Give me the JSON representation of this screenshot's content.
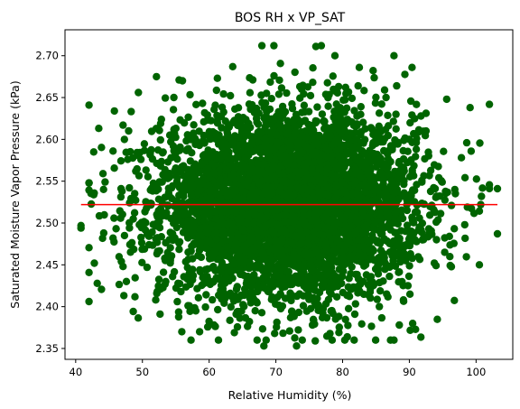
{
  "chart_data": {
    "type": "scatter",
    "title": "BOS RH x VP_SAT",
    "xlabel": "Relative Humidity (%)",
    "ylabel": "Saturated Moisture Vapor Pressure (kPa)",
    "xlim": [
      38.4,
      105.5
    ],
    "ylim": [
      2.337,
      2.731
    ],
    "xticks": [
      40,
      50,
      60,
      70,
      80,
      90,
      100
    ],
    "yticks": [
      2.35,
      2.4,
      2.45,
      2.5,
      2.55,
      2.6,
      2.65,
      2.7
    ],
    "grid": false,
    "legend": "none",
    "colors": {
      "points": "#006400",
      "regression": "#ff0000"
    },
    "series": [
      {
        "kind": "scatter",
        "distribution": {
          "x_mean": 72,
          "x_std": 9.5,
          "y_mean": 2.522,
          "y_std": 0.055,
          "n": 5000
        },
        "outliers": [
          [
            40.8,
            2.497
          ],
          [
            40.8,
            2.494
          ],
          [
            42.7,
            2.585
          ],
          [
            42.8,
            2.452
          ],
          [
            44.1,
            2.559
          ],
          [
            44.4,
            2.549
          ],
          [
            44.2,
            2.488
          ],
          [
            45.6,
            2.586
          ],
          [
            45.6,
            2.482
          ],
          [
            45.8,
            2.634
          ],
          [
            46.8,
            2.541
          ],
          [
            47.1,
            2.617
          ],
          [
            47.3,
            2.6
          ],
          [
            47.1,
            2.448
          ],
          [
            47.6,
            2.43
          ],
          [
            49.4,
            2.656
          ],
          [
            52.1,
            2.675
          ],
          [
            55.5,
            2.671
          ],
          [
            56.0,
            2.67
          ],
          [
            55.9,
            2.37
          ],
          [
            61.4,
            2.36
          ],
          [
            67.9,
            2.712
          ],
          [
            68.6,
            2.655
          ],
          [
            68.2,
            2.353
          ],
          [
            69.7,
            2.712
          ],
          [
            73.1,
            2.353
          ],
          [
            76.0,
            2.711
          ],
          [
            76.8,
            2.712
          ],
          [
            75.9,
            2.359
          ],
          [
            82.5,
            2.686
          ],
          [
            88.5,
            2.378
          ],
          [
            90.4,
            2.686
          ],
          [
            90.5,
            2.38
          ],
          [
            95.6,
            2.648
          ],
          [
            97.8,
            2.578
          ],
          [
            98.6,
            2.596
          ],
          [
            99.1,
            2.638
          ],
          [
            98.7,
            2.519
          ],
          [
            98.3,
            2.498
          ],
          [
            100.5,
            2.45
          ],
          [
            100.7,
            2.522
          ],
          [
            103.2,
            2.541
          ],
          [
            103.2,
            2.487
          ],
          [
            96.0,
            2.484
          ],
          [
            95.3,
            2.465
          ],
          [
            94.0,
            2.449
          ],
          [
            52.0,
            2.408
          ],
          [
            53.5,
            2.43
          ],
          [
            59.0,
            2.643
          ],
          [
            86.5,
            2.65
          ],
          [
            88.0,
            2.63
          ],
          [
            92.5,
            2.61
          ],
          [
            58.0,
            2.395
          ],
          [
            85.5,
            2.4
          ],
          [
            49.0,
            2.562
          ]
        ]
      },
      {
        "kind": "line",
        "x": [
          40.8,
          103.2
        ],
        "y": [
          2.522,
          2.522
        ]
      }
    ]
  }
}
